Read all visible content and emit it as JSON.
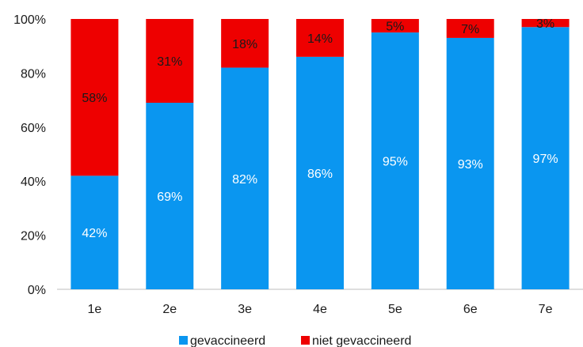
{
  "chart_data": {
    "type": "bar",
    "stacked": true,
    "percent_stacked": true,
    "categories": [
      "1e",
      "2e",
      "3e",
      "4e",
      "5e",
      "6e",
      "7e"
    ],
    "series": [
      {
        "name": "gevaccineerd",
        "values": [
          42,
          69,
          82,
          86,
          95,
          93,
          97
        ],
        "labels": [
          "42%",
          "69%",
          "82%",
          "86%",
          "95%",
          "93%",
          "97%"
        ],
        "color": "#0a96f0",
        "label_color": "#ffffff"
      },
      {
        "name": "niet gevaccineerd",
        "values": [
          58,
          31,
          18,
          14,
          5,
          7,
          3
        ],
        "labels": [
          "58%",
          "31%",
          "18%",
          "14%",
          "5%",
          "7%",
          "3%"
        ],
        "color": "#ee0000",
        "label_color": "#1a1a1a"
      }
    ],
    "ylim": [
      0,
      100
    ],
    "yticks": [
      0,
      20,
      40,
      60,
      80,
      100
    ],
    "ytick_labels": [
      "0%",
      "20%",
      "40%",
      "60%",
      "80%",
      "100%"
    ],
    "grid": false,
    "legend_position": "bottom"
  }
}
